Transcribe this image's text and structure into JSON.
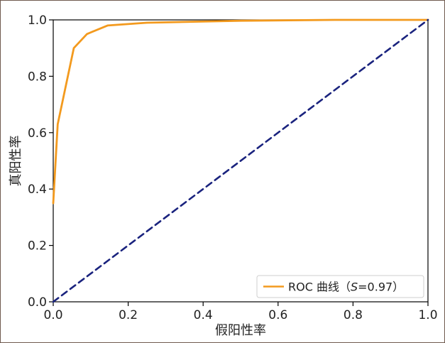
{
  "chart_data": {
    "type": "line",
    "title": "",
    "xlabel": "假阳性率",
    "ylabel": "真阳性率",
    "xlim": [
      0,
      1
    ],
    "ylim": [
      0,
      1
    ],
    "xticks": [
      "0.0",
      "0.2",
      "0.4",
      "0.6",
      "0.8",
      "1.0"
    ],
    "yticks": [
      "0.0",
      "0.2",
      "0.4",
      "0.6",
      "0.8",
      "1.0"
    ],
    "grid": false,
    "legend_position": "bottom-right",
    "legend": {
      "prefix": "ROC 曲线（",
      "italic": "S",
      "suffix": "=0.97）"
    },
    "series": [
      {
        "kind": "roc",
        "color": "#f39a1e",
        "style": "solid",
        "x": [
          0.0,
          0.012,
          0.055,
          0.09,
          0.145,
          0.25,
          0.5,
          0.75,
          1.0
        ],
        "y": [
          0.35,
          0.63,
          0.9,
          0.95,
          0.98,
          0.99,
          0.997,
          1.0,
          1.0
        ]
      },
      {
        "kind": "baseline",
        "color": "#1a237e",
        "style": "dashed",
        "x": [
          0,
          1
        ],
        "y": [
          0,
          1
        ]
      }
    ]
  }
}
